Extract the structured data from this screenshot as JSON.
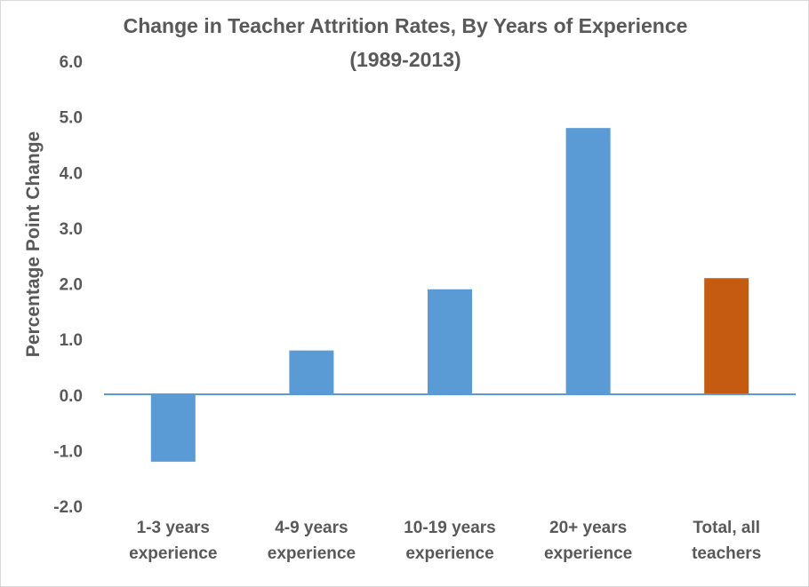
{
  "chart_data": {
    "type": "bar",
    "title": [
      "Change in Teacher Attrition Rates, By Years of Experience",
      "(1989-2013)"
    ],
    "xlabel": "",
    "ylabel": "Percentage Point Change",
    "ylim": [
      -2.0,
      6.0
    ],
    "yticks": [
      "6.0",
      "5.0",
      "4.0",
      "3.0",
      "2.0",
      "1.0",
      "0.0",
      "-1.0",
      "-2.0"
    ],
    "ytick_values": [
      6,
      5,
      4,
      3,
      2,
      1,
      0,
      -1,
      -2
    ],
    "categories": [
      [
        "1-3 years",
        "experience"
      ],
      [
        "4-9 years",
        "experience"
      ],
      [
        "10-19 years",
        "experience"
      ],
      [
        "20+ years",
        "experience"
      ],
      [
        "Total, all",
        "teachers"
      ]
    ],
    "values": [
      -1.2,
      0.8,
      1.9,
      4.8,
      2.1
    ],
    "bar_colors": [
      "#5b9bd5",
      "#5b9bd5",
      "#5b9bd5",
      "#5b9bd5",
      "#c55a11"
    ],
    "zero_line_color": "#5b9bd5",
    "grid": false,
    "legend": "none"
  }
}
